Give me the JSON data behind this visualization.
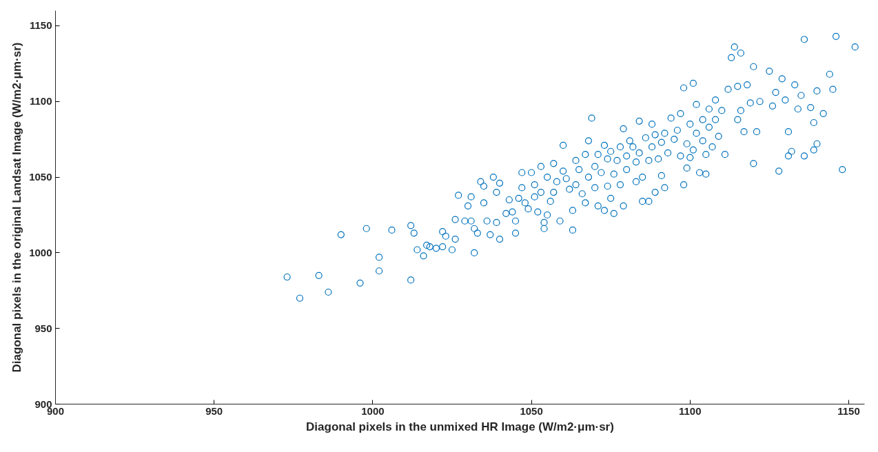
{
  "chart_data": {
    "type": "scatter",
    "xlabel": "Diagonal pixels in the unmixed HR Image (W/m2·μm·sr)",
    "ylabel": "Diagonal pixels in the original Landsat Image (W/m2·μm·sr)",
    "xlim": [
      900,
      1155
    ],
    "ylim": [
      900,
      1160
    ],
    "xticks": [
      900,
      950,
      1000,
      1050,
      1100,
      1150
    ],
    "yticks": [
      900,
      950,
      1000,
      1050,
      1100,
      1150
    ],
    "marker": "circle",
    "grid": false,
    "series": [
      {
        "color": "#0072bd",
        "x": [
          973,
          977,
          983,
          986,
          990,
          996,
          998,
          1002,
          1002,
          1006,
          1012,
          1012,
          1013,
          1014,
          1016,
          1017,
          1018,
          1020,
          1022,
          1022,
          1023,
          1025,
          1026,
          1026,
          1027,
          1029,
          1030,
          1031,
          1031,
          1032,
          1032,
          1033,
          1034,
          1035,
          1035,
          1036,
          1037,
          1038,
          1039,
          1039,
          1040,
          1040,
          1042,
          1043,
          1044,
          1045,
          1045,
          1046,
          1047,
          1047,
          1048,
          1049,
          1050,
          1051,
          1051,
          1052,
          1053,
          1053,
          1054,
          1054,
          1055,
          1055,
          1056,
          1057,
          1057,
          1058,
          1059,
          1060,
          1060,
          1061,
          1062,
          1063,
          1063,
          1064,
          1064,
          1065,
          1066,
          1067,
          1067,
          1068,
          1068,
          1069,
          1070,
          1070,
          1071,
          1071,
          1072,
          1073,
          1073,
          1074,
          1074,
          1075,
          1075,
          1076,
          1076,
          1077,
          1078,
          1078,
          1079,
          1079,
          1080,
          1080,
          1081,
          1082,
          1083,
          1083,
          1084,
          1084,
          1085,
          1085,
          1086,
          1087,
          1087,
          1088,
          1088,
          1089,
          1089,
          1090,
          1091,
          1091,
          1092,
          1092,
          1093,
          1094,
          1095,
          1096,
          1097,
          1097,
          1098,
          1098,
          1099,
          1099,
          1100,
          1100,
          1101,
          1101,
          1102,
          1102,
          1103,
          1104,
          1104,
          1105,
          1105,
          1106,
          1106,
          1107,
          1108,
          1108,
          1109,
          1110,
          1111,
          1112,
          1113,
          1114,
          1115,
          1115,
          1116,
          1116,
          1117,
          1118,
          1119,
          1120,
          1120,
          1121,
          1122,
          1125,
          1126,
          1127,
          1128,
          1129,
          1130,
          1131,
          1131,
          1132,
          1133,
          1134,
          1135,
          1136,
          1136,
          1138,
          1139,
          1139,
          1140,
          1140,
          1142,
          1144,
          1145,
          1146,
          1148,
          1152
        ],
        "values": [
          984,
          970,
          985,
          974,
          1012,
          980,
          1016,
          997,
          988,
          1015,
          982,
          1018,
          1013,
          1002,
          998,
          1005,
          1004,
          1003,
          1004,
          1014,
          1011,
          1002,
          1022,
          1009,
          1038,
          1021,
          1031,
          1037,
          1021,
          1000,
          1016,
          1013,
          1047,
          1044,
          1033,
          1021,
          1012,
          1050,
          1040,
          1020,
          1046,
          1009,
          1026,
          1035,
          1027,
          1021,
          1013,
          1036,
          1043,
          1053,
          1033,
          1029,
          1053,
          1045,
          1037,
          1027,
          1040,
          1057,
          1020,
          1016,
          1025,
          1050,
          1034,
          1059,
          1040,
          1047,
          1021,
          1071,
          1054,
          1049,
          1042,
          1028,
          1015,
          1061,
          1045,
          1055,
          1039,
          1065,
          1033,
          1050,
          1074,
          1089,
          1057,
          1043,
          1065,
          1031,
          1053,
          1071,
          1028,
          1062,
          1044,
          1067,
          1036,
          1052,
          1026,
          1061,
          1070,
          1045,
          1082,
          1031,
          1064,
          1055,
          1074,
          1070,
          1060,
          1047,
          1087,
          1066,
          1034,
          1050,
          1076,
          1061,
          1034,
          1085,
          1070,
          1078,
          1040,
          1062,
          1073,
          1051,
          1079,
          1043,
          1066,
          1089,
          1075,
          1081,
          1092,
          1064,
          1109,
          1045,
          1072,
          1056,
          1085,
          1063,
          1112,
          1068,
          1098,
          1079,
          1053,
          1088,
          1074,
          1065,
          1052,
          1095,
          1083,
          1070,
          1101,
          1088,
          1077,
          1094,
          1065,
          1108,
          1129,
          1136,
          1110,
          1088,
          1132,
          1094,
          1080,
          1111,
          1099,
          1123,
          1059,
          1080,
          1100,
          1120,
          1097,
          1106,
          1054,
          1115,
          1101,
          1080,
          1064,
          1067,
          1111,
          1095,
          1104,
          1141,
          1064,
          1096,
          1086,
          1068,
          1072,
          1107,
          1092,
          1118,
          1108,
          1143,
          1055,
          1136
        ]
      }
    ]
  }
}
